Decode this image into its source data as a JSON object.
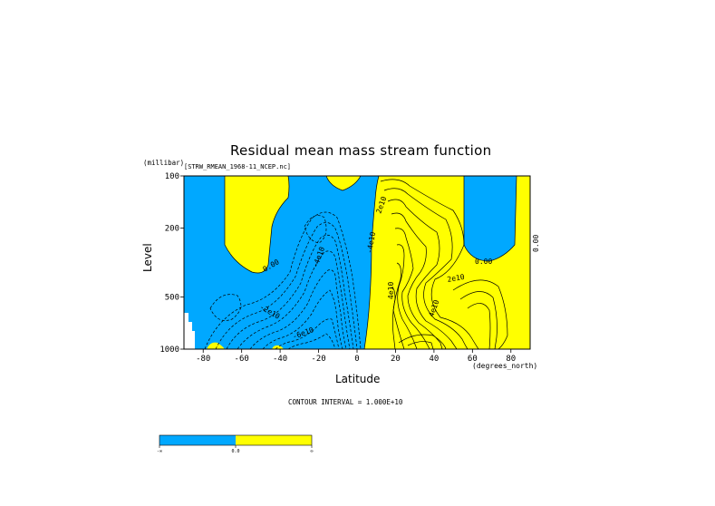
{
  "chart_data": {
    "type": "contour",
    "title": "Residual mean mass stream function",
    "source": "[STRW_RMEAN_1968-11_NCEP.nc]",
    "xlabel": "Latitude",
    "x_units": "(degrees_north)",
    "ylabel": "Level",
    "y_units": "(millibar)",
    "xlim": [
      -90,
      90
    ],
    "ylim": [
      1000,
      100
    ],
    "y_scale": "log",
    "x_ticks": [
      -80,
      -60,
      -40,
      -20,
      0,
      20,
      40,
      60,
      80
    ],
    "y_ticks": [
      100,
      200,
      500,
      1000
    ],
    "contour_interval_text": "CONTOUR INTERVAL = 1.000E+10",
    "contour_labels": [
      "0.00",
      "2e10",
      "4e10",
      "-2e10",
      "-4e10",
      "-6e10"
    ],
    "fill_colors": {
      "negative": "#00a8ff",
      "positive": "#ffff00"
    },
    "colorbar": {
      "labels": [
        "-∞",
        "0.0",
        "∞"
      ],
      "colors": [
        "#00a8ff",
        "#ffff00"
      ]
    },
    "grid": false
  }
}
